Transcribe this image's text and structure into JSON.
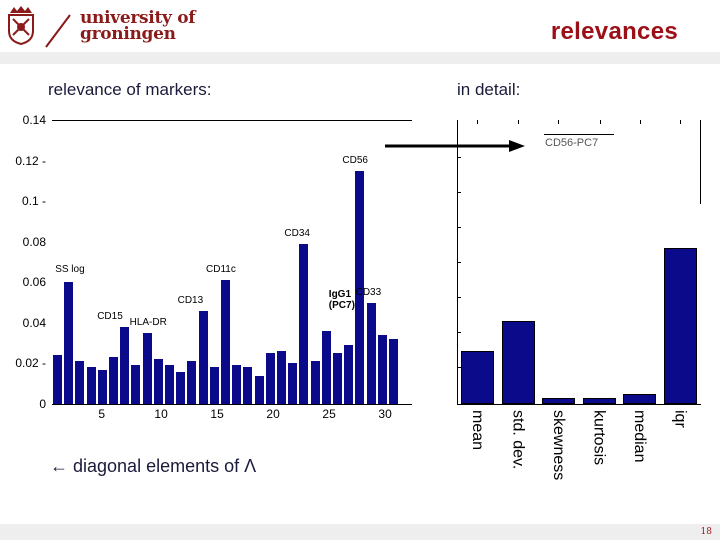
{
  "header": {
    "logo_line1": "university of",
    "logo_line2": "groningen",
    "title": "relevances"
  },
  "left_panel": {
    "label": "relevance of markers:"
  },
  "right_panel": {
    "label": "in detail:",
    "arrow_target_label": "CD56-PC7"
  },
  "caption": "← diagonal elements of Λ",
  "footer": {
    "page_number": "18"
  },
  "colors": {
    "bar": "#0a0a8a",
    "title": "#9b1016",
    "logo": "#8b1a1a",
    "band": "#eeeeee"
  },
  "chart_data": [
    {
      "type": "bar",
      "title": "relevance of markers:",
      "xlabel": "",
      "ylabel": "",
      "x": [
        1,
        2,
        3,
        4,
        5,
        6,
        7,
        8,
        9,
        10,
        11,
        12,
        13,
        14,
        15,
        16,
        17,
        18,
        19,
        20,
        21,
        22,
        23,
        24,
        25,
        26,
        27,
        28,
        29,
        30,
        31
      ],
      "values": [
        0.024,
        0.06,
        0.021,
        0.018,
        0.017,
        0.023,
        0.038,
        0.019,
        0.035,
        0.022,
        0.019,
        0.016,
        0.021,
        0.046,
        0.018,
        0.061,
        0.019,
        0.018,
        0.014,
        0.025,
        0.026,
        0.02,
        0.079,
        0.021,
        0.036,
        0.025,
        0.029,
        0.115,
        0.05,
        0.034,
        0.032
      ],
      "annotations": [
        {
          "x": 2,
          "text": "SS log"
        },
        {
          "x": 7,
          "text": "CD15"
        },
        {
          "x": 9,
          "text": "HLA-DR"
        },
        {
          "x": 14,
          "text": "CD13"
        },
        {
          "x": 16,
          "text": "CD11c"
        },
        {
          "x": 23,
          "text": "CD34"
        },
        {
          "x": 25,
          "text": "IgG1 (PC7)"
        },
        {
          "x": 28,
          "text": "CD56"
        },
        {
          "x": 29,
          "text": "CD33"
        }
      ],
      "yticks": [
        "0",
        "0.02",
        "0.04",
        "0.06",
        "0.08",
        "0.1",
        "0.12",
        "0.14"
      ],
      "xticks": [
        "5",
        "10",
        "15",
        "20",
        "25",
        "30"
      ],
      "ylim": [
        0,
        0.14
      ],
      "grid": false
    },
    {
      "type": "bar",
      "title": "in detail:",
      "subtitle": "CD56-PC7",
      "categories": [
        "mean",
        "std. dev.",
        "skewness",
        "kurtosis",
        "median",
        "iqr"
      ],
      "values": [
        0.026,
        0.041,
        0.003,
        0.003,
        0.005,
        0.077
      ],
      "ylim": [
        0,
        0.14
      ],
      "grid": false
    }
  ]
}
